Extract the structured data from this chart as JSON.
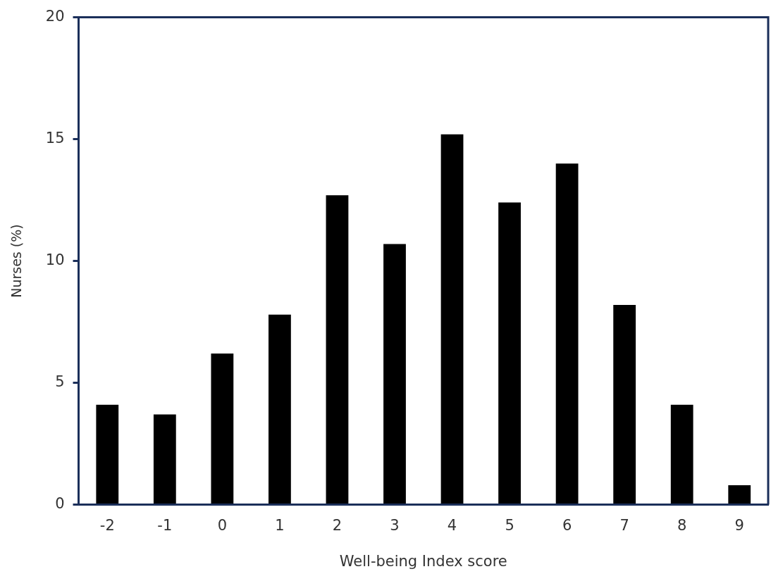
{
  "chart_data": {
    "type": "bar",
    "xlabel": "Well-being Index score",
    "ylabel": "Nurses (%)",
    "categories": [
      "-2",
      "-1",
      "0",
      "1",
      "2",
      "3",
      "4",
      "5",
      "6",
      "7",
      "8",
      "9"
    ],
    "values": [
      4.1,
      3.7,
      6.2,
      7.8,
      12.7,
      10.7,
      15.2,
      12.4,
      14.0,
      8.2,
      4.1,
      0.8
    ],
    "color": "#000000",
    "ylim": [
      0,
      20
    ],
    "yticks": [
      0,
      5,
      10,
      15,
      20
    ],
    "grid": false,
    "legend": false
  }
}
